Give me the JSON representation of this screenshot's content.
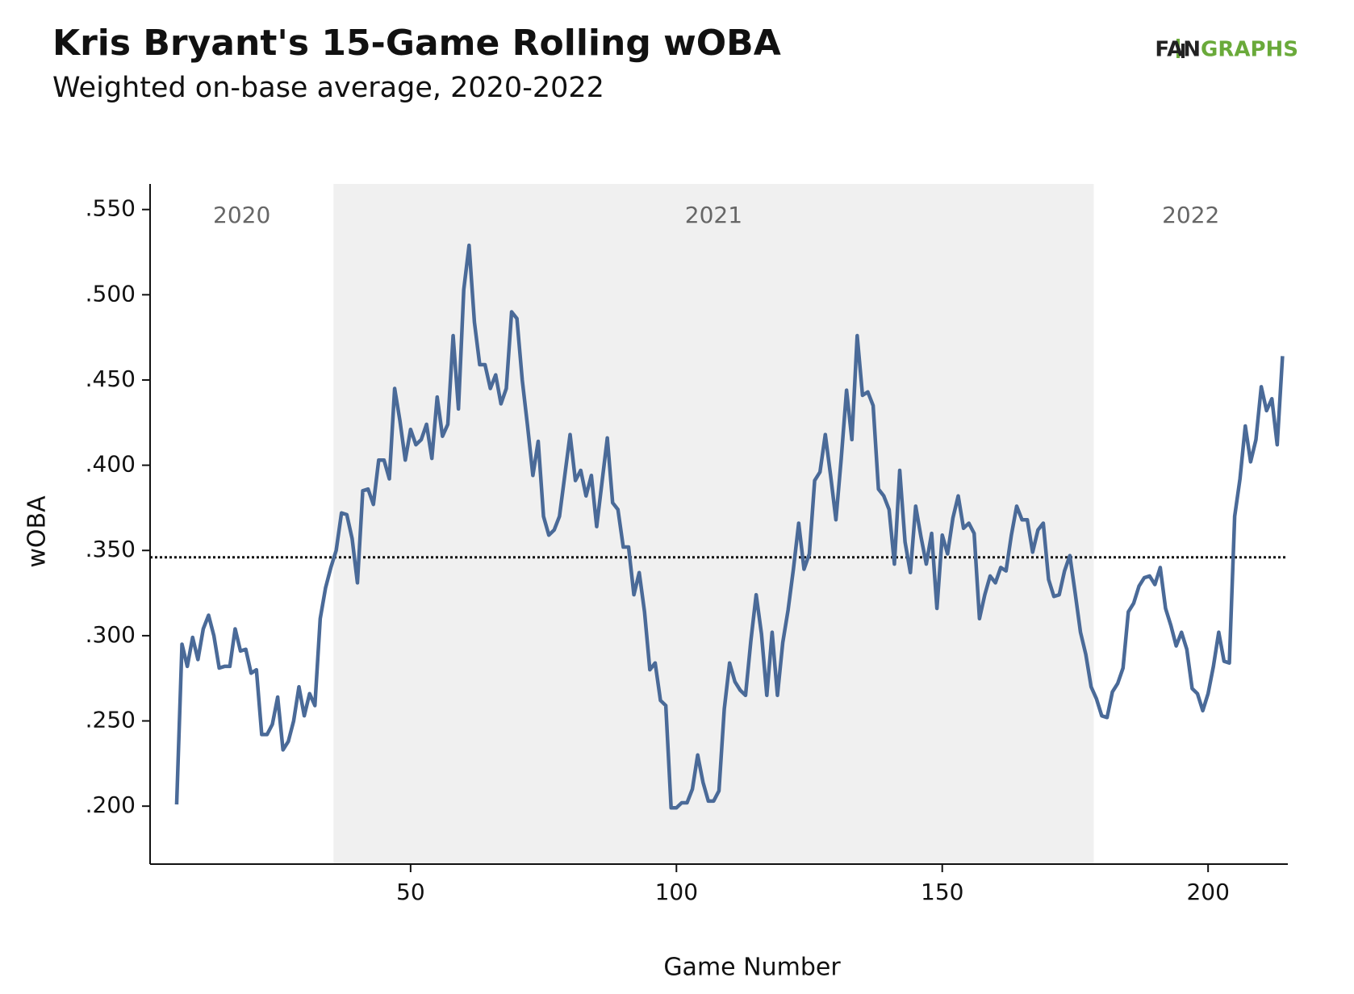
{
  "chart_data": {
    "type": "line",
    "title": "Kris Bryant's 15-Game Rolling wOBA",
    "subtitle": "Weighted on-base average, 2020-2022",
    "logo": [
      "FAN",
      "GRAPHS"
    ],
    "x_label": "Game Number",
    "y_label": "wOBA",
    "xlim": [
      1,
      215
    ],
    "ylim": [
      0.166,
      0.565
    ],
    "xticks": [
      50,
      100,
      150,
      200
    ],
    "yticks": [
      {
        "value": 0.2,
        "label": ".200"
      },
      {
        "value": 0.25,
        "label": ".250"
      },
      {
        "value": 0.3,
        "label": ".300"
      },
      {
        "value": 0.35,
        "label": ".350"
      },
      {
        "value": 0.4,
        "label": ".400"
      },
      {
        "value": 0.45,
        "label": ".450"
      },
      {
        "value": 0.5,
        "label": ".500"
      },
      {
        "value": 0.55,
        "label": ".550"
      }
    ],
    "seasons": [
      {
        "label": "2020",
        "start": 1,
        "end": 35.5,
        "shaded": false
      },
      {
        "label": "2021",
        "start": 35.5,
        "end": 178.5,
        "shaded": true
      },
      {
        "label": "2022",
        "start": 178.5,
        "end": 215,
        "shaded": false
      }
    ],
    "reference_line": 0.346,
    "series": [
      {
        "name": "wOBA",
        "color": "#4a6a98",
        "x": [
          6,
          7,
          8,
          9,
          10,
          11,
          12,
          13,
          14,
          15,
          16,
          17,
          18,
          19,
          20,
          21,
          22,
          23,
          24,
          25,
          26,
          27,
          28,
          29,
          30,
          31,
          32,
          33,
          34,
          35,
          36,
          37,
          38,
          39,
          40,
          41,
          42,
          43,
          44,
          45,
          46,
          47,
          48,
          49,
          50,
          51,
          52,
          53,
          54,
          55,
          56,
          57,
          58,
          59,
          60,
          61,
          62,
          63,
          64,
          65,
          66,
          67,
          68,
          69,
          70,
          71,
          72,
          73,
          74,
          75,
          76,
          77,
          78,
          79,
          80,
          81,
          82,
          83,
          84,
          85,
          86,
          87,
          88,
          89,
          90,
          91,
          92,
          93,
          94,
          95,
          96,
          97,
          98,
          99,
          100,
          101,
          102,
          103,
          104,
          105,
          106,
          107,
          108,
          109,
          110,
          111,
          112,
          113,
          114,
          115,
          116,
          117,
          118,
          119,
          120,
          121,
          122,
          123,
          124,
          125,
          126,
          127,
          128,
          129,
          130,
          131,
          132,
          133,
          134,
          135,
          136,
          137,
          138,
          139,
          140,
          141,
          142,
          143,
          144,
          145,
          146,
          147,
          148,
          149,
          150,
          151,
          152,
          153,
          154,
          155,
          156,
          157,
          158,
          159,
          160,
          161,
          162,
          163,
          164,
          165,
          166,
          167,
          168,
          169,
          170,
          171,
          172,
          173,
          174,
          175,
          176,
          177,
          178,
          179,
          180,
          181,
          182,
          183,
          184,
          185,
          186,
          187,
          188,
          189,
          190,
          191,
          192,
          193,
          194,
          195,
          196,
          197,
          198,
          199,
          200,
          201,
          202,
          203,
          204,
          205,
          206,
          207,
          208,
          209,
          210,
          211,
          212,
          213,
          214
        ],
        "values": [
          0.201,
          0.295,
          0.282,
          0.299,
          0.286,
          0.304,
          0.312,
          0.3,
          0.281,
          0.282,
          0.282,
          0.304,
          0.291,
          0.292,
          0.278,
          0.28,
          0.242,
          0.242,
          0.248,
          0.264,
          0.233,
          0.238,
          0.25,
          0.27,
          0.253,
          0.266,
          0.259,
          0.31,
          0.328,
          0.34,
          0.35,
          0.372,
          0.371,
          0.357,
          0.331,
          0.385,
          0.386,
          0.377,
          0.403,
          0.403,
          0.392,
          0.445,
          0.426,
          0.403,
          0.421,
          0.412,
          0.415,
          0.424,
          0.404,
          0.44,
          0.417,
          0.424,
          0.476,
          0.433,
          0.503,
          0.529,
          0.484,
          0.459,
          0.459,
          0.445,
          0.453,
          0.436,
          0.445,
          0.49,
          0.486,
          0.45,
          0.423,
          0.394,
          0.414,
          0.37,
          0.359,
          0.362,
          0.37,
          0.394,
          0.418,
          0.391,
          0.397,
          0.382,
          0.394,
          0.364,
          0.39,
          0.416,
          0.378,
          0.374,
          0.352,
          0.352,
          0.324,
          0.337,
          0.314,
          0.28,
          0.284,
          0.262,
          0.259,
          0.199,
          0.199,
          0.202,
          0.202,
          0.21,
          0.23,
          0.214,
          0.203,
          0.203,
          0.209,
          0.257,
          0.284,
          0.273,
          0.268,
          0.265,
          0.297,
          0.324,
          0.301,
          0.265,
          0.302,
          0.265,
          0.296,
          0.315,
          0.339,
          0.366,
          0.339,
          0.348,
          0.391,
          0.396,
          0.418,
          0.394,
          0.368,
          0.404,
          0.444,
          0.415,
          0.476,
          0.441,
          0.443,
          0.435,
          0.386,
          0.382,
          0.374,
          0.342,
          0.397,
          0.355,
          0.337,
          0.376,
          0.358,
          0.342,
          0.36,
          0.316,
          0.359,
          0.348,
          0.369,
          0.382,
          0.363,
          0.366,
          0.36,
          0.31,
          0.324,
          0.335,
          0.331,
          0.34,
          0.338,
          0.359,
          0.376,
          0.368,
          0.368,
          0.349,
          0.362,
          0.366,
          0.333,
          0.323,
          0.324,
          0.338,
          0.347,
          0.325,
          0.302,
          0.289,
          0.27,
          0.263,
          0.253,
          0.252,
          0.267,
          0.272,
          0.281,
          0.314,
          0.319,
          0.329,
          0.334,
          0.335,
          0.33,
          0.34,
          0.316,
          0.306,
          0.294,
          0.302,
          0.292,
          0.269,
          0.266,
          0.256,
          0.266,
          0.282,
          0.302,
          0.285,
          0.284,
          0.37,
          0.392,
          0.423,
          0.402,
          0.415,
          0.446,
          0.432,
          0.439,
          0.412,
          0.464
        ]
      }
    ]
  }
}
